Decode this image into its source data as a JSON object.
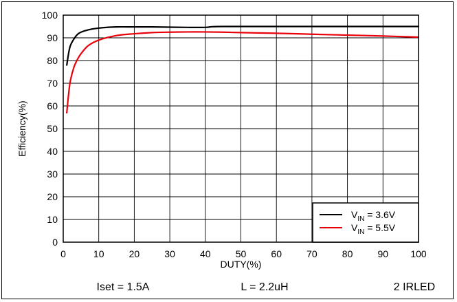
{
  "chart_data": {
    "type": "line",
    "title": "",
    "xlabel": "DUTY(%)",
    "ylabel": "Efficiency(%)",
    "xlim": [
      0,
      100
    ],
    "ylim": [
      0,
      100
    ],
    "x_ticks": [
      0,
      10,
      20,
      30,
      40,
      50,
      60,
      70,
      80,
      90,
      100
    ],
    "y_ticks": [
      0,
      10,
      20,
      30,
      40,
      50,
      60,
      70,
      80,
      90,
      100
    ],
    "grid": true,
    "legend_position": "bottom-right",
    "series": [
      {
        "label_main": "V",
        "label_sub": "IN",
        "label_rest": " = 3.6V",
        "color": "#000000",
        "x": [
          1,
          1.5,
          2,
          3,
          4,
          5,
          7,
          10,
          15,
          20,
          25,
          30,
          35,
          40,
          42,
          45,
          50,
          60,
          70,
          80,
          90,
          100
        ],
        "y": [
          78,
          83,
          86.5,
          89.5,
          91.5,
          92.5,
          93.5,
          94.3,
          94.8,
          94.8,
          94.8,
          94.7,
          94.6,
          94.6,
          94.9,
          95,
          95,
          95,
          95,
          95,
          95,
          95
        ]
      },
      {
        "label_main": "V",
        "label_sub": "IN",
        "label_rest": " = 5.5V",
        "color": "#e8000b",
        "x": [
          1,
          1.5,
          2,
          3,
          4,
          5,
          7,
          10,
          15,
          20,
          25,
          30,
          35,
          40,
          45,
          50,
          60,
          70,
          80,
          90,
          100
        ],
        "y": [
          57,
          65,
          71,
          77,
          80.5,
          83,
          86.5,
          89,
          91,
          91.8,
          92.3,
          92.5,
          92.6,
          92.6,
          92.5,
          92.3,
          92,
          91.6,
          91.2,
          90.8,
          90.3
        ]
      }
    ]
  },
  "footer": {
    "iset": "Iset = 1.5A",
    "inductor": "L = 2.2uH",
    "load": "2 IRLED"
  }
}
